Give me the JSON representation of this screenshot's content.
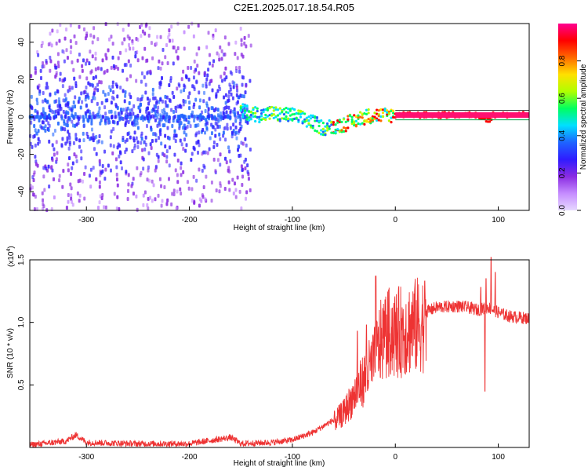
{
  "title": "C2E1.2025.017.18.54.R05",
  "chart_data": [
    {
      "type": "heatmap",
      "xlabel": "Height of straight line (km)",
      "ylabel": "Frequency (Hz)",
      "xlim": [
        -355,
        130
      ],
      "ylim": [
        -50,
        50
      ],
      "xticks": [
        -300,
        -200,
        -100,
        0,
        100
      ],
      "yticks": [
        -40,
        -20,
        0,
        20,
        40
      ],
      "colorbar": {
        "label": "Normalized spectral amplitude",
        "range": [
          0,
          1
        ],
        "ticks": [
          "0.0",
          "0.2",
          "0.4",
          "0.6",
          "0.8"
        ],
        "colors": [
          "#e6d9ff",
          "#c58cff",
          "#8a2be2",
          "#2f1cff",
          "#1e64ff",
          "#00e0ff",
          "#00ff60",
          "#b0ff00",
          "#ffe000",
          "#ff6a00",
          "#ff0000",
          "#ff0090"
        ]
      },
      "center_track": [
        [
          -150,
          3
        ],
        [
          -140,
          2
        ],
        [
          -130,
          1
        ],
        [
          -120,
          2
        ],
        [
          -110,
          1
        ],
        [
          -100,
          1
        ],
        [
          -90,
          -1
        ],
        [
          -80,
          -3
        ],
        [
          -70,
          -6
        ],
        [
          -60,
          -5
        ],
        [
          -50,
          -4
        ],
        [
          -40,
          -2
        ],
        [
          -30,
          0
        ],
        [
          -20,
          1
        ],
        [
          -10,
          1
        ],
        [
          0,
          1
        ],
        [
          20,
          1
        ],
        [
          40,
          1
        ],
        [
          60,
          1
        ],
        [
          80,
          1
        ],
        [
          85,
          0
        ],
        [
          90,
          -2
        ],
        [
          95,
          1
        ],
        [
          130,
          1
        ]
      ],
      "noise_band": {
        "x_range": [
          -355,
          -140
        ],
        "y_range": [
          -50,
          50
        ]
      },
      "grid": false
    },
    {
      "type": "line",
      "xlabel": "Height of straight line (km)",
      "ylabel": "SNR (10 * v/v)",
      "y_scale_label": "(x10",
      "y_scale_exp": "4",
      "xlim": [
        -355,
        130
      ],
      "ylim": [
        0,
        1.5
      ],
      "xticks": [
        -300,
        -200,
        -100,
        0,
        100
      ],
      "yticks": [
        "0.5",
        "1.0",
        "1.5"
      ],
      "color": "#ee3333",
      "envelope": [
        [
          -355,
          0.02
        ],
        [
          -320,
          0.05
        ],
        [
          -310,
          0.1
        ],
        [
          -300,
          0.04
        ],
        [
          -250,
          0.03
        ],
        [
          -200,
          0.03
        ],
        [
          -160,
          0.08
        ],
        [
          -150,
          0.03
        ],
        [
          -120,
          0.04
        ],
        [
          -100,
          0.06
        ],
        [
          -80,
          0.12
        ],
        [
          -60,
          0.22
        ],
        [
          -50,
          0.3
        ],
        [
          -40,
          0.45
        ],
        [
          -30,
          0.6
        ],
        [
          -20,
          0.75
        ],
        [
          -15,
          0.9
        ],
        [
          -10,
          0.95
        ],
        [
          -5,
          1.0
        ],
        [
          0,
          0.98
        ],
        [
          10,
          1.02
        ],
        [
          20,
          1.05
        ],
        [
          40,
          1.12
        ],
        [
          60,
          1.13
        ],
        [
          70,
          1.12
        ],
        [
          80,
          1.1
        ],
        [
          90,
          1.12
        ],
        [
          100,
          1.08
        ],
        [
          110,
          1.05
        ],
        [
          130,
          1.03
        ]
      ],
      "peaks": [
        [
          -19,
          1.37
        ],
        [
          -10,
          1.18
        ],
        [
          -28,
          0.98
        ],
        [
          -37,
          0.93
        ],
        [
          83,
          1.28
        ],
        [
          88,
          1.35
        ],
        [
          93,
          1.52
        ],
        [
          97,
          1.4
        ],
        [
          87,
          0.45
        ]
      ]
    }
  ]
}
